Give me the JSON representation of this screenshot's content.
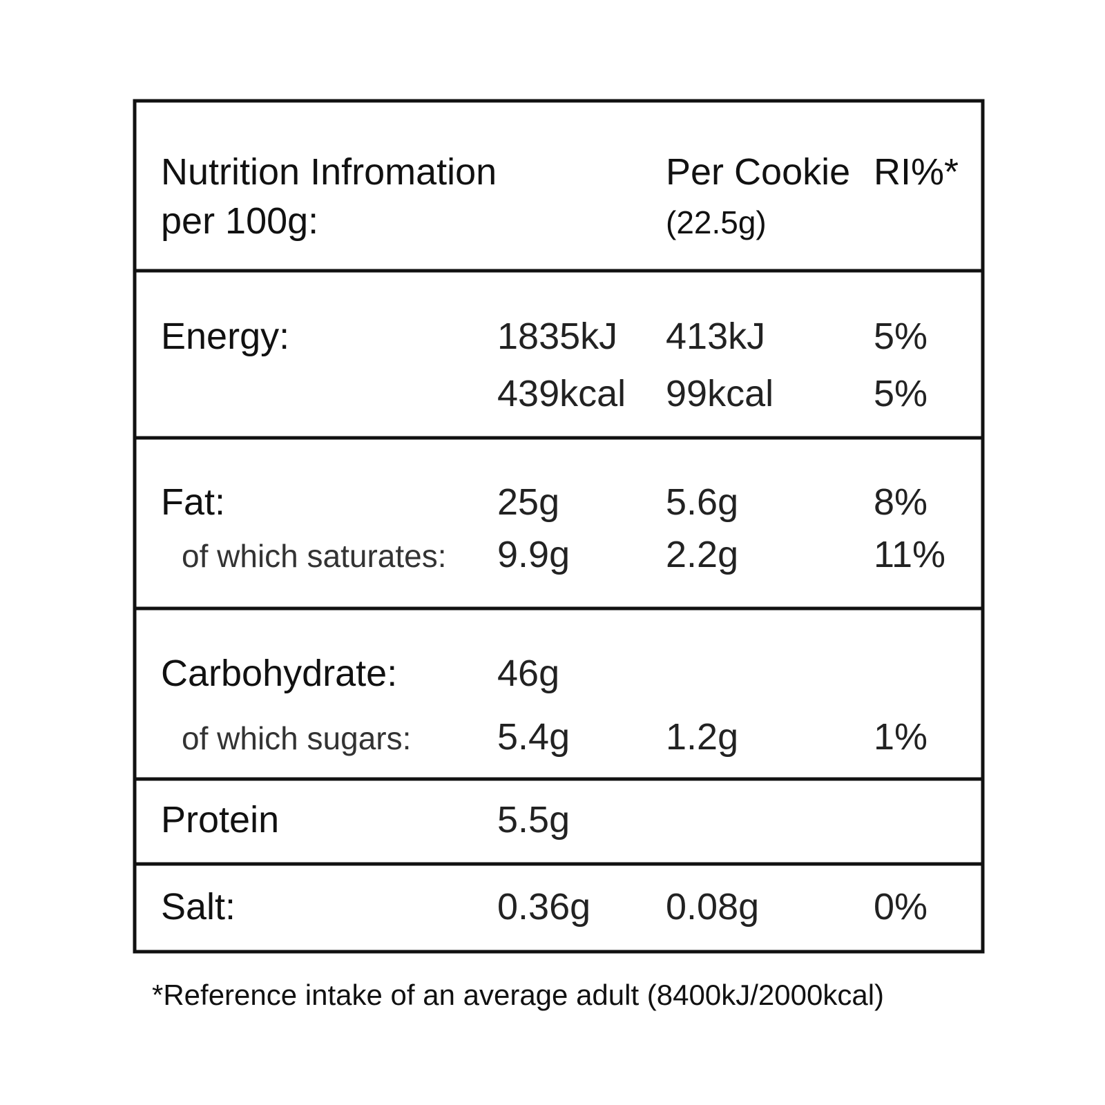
{
  "header": {
    "title": [
      "Nutrition Infromation",
      "per 100g:"
    ],
    "per_cookie": [
      "Per Cookie",
      "(22.5g)"
    ],
    "ri": "RI%*"
  },
  "sections": [
    {
      "lines": [
        {
          "label": "Energy:",
          "per_100g": "1835kJ",
          "per_cookie": "413kJ",
          "ri": "5%"
        },
        {
          "per_100g": "439kcal",
          "per_cookie": "99kcal",
          "ri": "5%"
        }
      ]
    },
    {
      "lines": [
        {
          "label": "Fat:",
          "per_100g": "25g",
          "per_cookie": "5.6g",
          "ri": "8%"
        },
        {
          "sublabel": "of which saturates:",
          "per_100g": "9.9g",
          "per_cookie": "2.2g",
          "ri": "11%"
        }
      ]
    },
    {
      "lines": [
        {
          "label": "Carbohydrate:",
          "per_100g": "46g"
        },
        {
          "sublabel": "of which sugars:",
          "per_100g": "5.4g",
          "per_cookie": "1.2g",
          "ri": "1%"
        }
      ]
    },
    {
      "lines": [
        {
          "label": "Protein",
          "per_100g": "5.5g"
        }
      ]
    },
    {
      "lines": [
        {
          "label": "Salt:",
          "per_100g": "0.36g",
          "per_cookie": "0.08g",
          "ri": "0%"
        }
      ]
    }
  ],
  "footnote": "*Reference intake of an average adult (8400kJ/2000kcal)"
}
